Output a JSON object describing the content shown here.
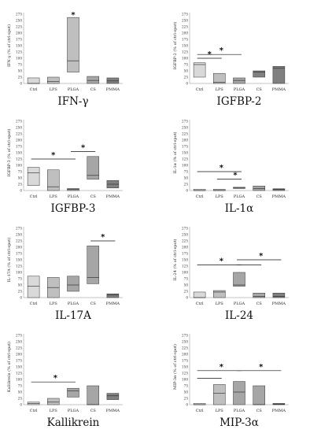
{
  "chart_data": [
    {
      "type": "box",
      "title": "IFN-γ",
      "ylabel": "IFN-γ (% of ctrl-spot)",
      "categories": [
        "Ctrl",
        "LPS",
        "PLGA",
        "CS",
        "PMMA"
      ],
      "yticks": [
        "0",
        "25",
        "50",
        "75",
        "100",
        "125",
        "150",
        "175",
        "200",
        "225",
        "250",
        "275"
      ],
      "ylim": [
        0,
        275
      ],
      "boxes": [
        {
          "low": 0,
          "median": 0,
          "high": 22,
          "fill": "#d9d9d9"
        },
        {
          "low": 0,
          "median": 8,
          "high": 25,
          "fill": "#bfbfbf"
        },
        {
          "low": 45,
          "median": 90,
          "high": 262,
          "fill": "#bfbfbf"
        },
        {
          "low": 0,
          "median": 12,
          "high": 28,
          "fill": "#a6a6a6"
        },
        {
          "low": 0,
          "median": 10,
          "high": 22,
          "fill": "#808080"
        }
      ],
      "significance": [
        {
          "x": 2,
          "y": 275,
          "bracket": false
        }
      ]
    },
    {
      "type": "box",
      "title": "IGFBP-2",
      "ylabel": "IGFBP-2 (% of ctrl-spot)",
      "categories": [
        "Ctrl",
        "LPS",
        "PLGA",
        "CS",
        "PMMA"
      ],
      "yticks": [
        "0",
        "25",
        "50",
        "75",
        "100",
        "125",
        "150",
        "175",
        "200",
        "225",
        "250",
        "275"
      ],
      "ylim": [
        0,
        275
      ],
      "boxes": [
        {
          "low": 25,
          "median": 75,
          "high": 82,
          "fill": "#d9d9d9"
        },
        {
          "low": 0,
          "median": 5,
          "high": 40,
          "fill": "#bfbfbf"
        },
        {
          "low": 0,
          "median": 12,
          "high": 22,
          "fill": "#a6a6a6"
        },
        {
          "low": 25,
          "median": 45,
          "high": 50,
          "fill": "#808080"
        },
        {
          "low": 0,
          "median": 60,
          "high": 68,
          "fill": "#808080"
        }
      ],
      "significance": [
        {
          "x1": 0,
          "x2": 1,
          "y": 100,
          "bracket": true
        },
        {
          "x1": 0,
          "x2": 2,
          "y": 115,
          "bracket": true,
          "star_x": 1.1
        }
      ]
    },
    {
      "type": "box",
      "title": "IGFBP-3",
      "ylabel": "IGFBP-3 (% of ctrl-spot)",
      "categories": [
        "Ctrl",
        "LPS",
        "PLGA",
        "CS",
        "PMMA"
      ],
      "yticks": [
        "0",
        "25",
        "50",
        "75",
        "100",
        "125",
        "150",
        "175",
        "200",
        "225",
        "250",
        "275"
      ],
      "ylim": [
        0,
        275
      ],
      "boxes": [
        {
          "low": 20,
          "median": 70,
          "high": 92,
          "fill": "#d9d9d9"
        },
        {
          "low": 0,
          "median": 15,
          "high": 82,
          "fill": "#bfbfbf"
        },
        {
          "low": 0,
          "median": 5,
          "high": 8,
          "fill": "#a6a6a6"
        },
        {
          "low": 45,
          "median": 60,
          "high": 135,
          "fill": "#a6a6a6"
        },
        {
          "low": 10,
          "median": 25,
          "high": 40,
          "fill": "#808080"
        }
      ],
      "significance": [
        {
          "x1": 0,
          "x2": 2,
          "y": 125,
          "bracket": true
        },
        {
          "x1": 2,
          "x2": 3,
          "y": 155,
          "bracket": true
        }
      ]
    },
    {
      "type": "box",
      "title": "IL-1α",
      "ylabel": "IL-1α (% of ctrl-spot)",
      "categories": [
        "Ctrl",
        "LPS",
        "PLGA",
        "CS",
        "PMMA"
      ],
      "yticks": [
        "0",
        "25",
        "50",
        "75",
        "100",
        "125",
        "150",
        "175",
        "200",
        "225",
        "250",
        "275"
      ],
      "ylim": [
        0,
        275
      ],
      "boxes": [
        {
          "low": 0,
          "median": 0,
          "high": 5,
          "fill": "#d9d9d9"
        },
        {
          "low": 0,
          "median": 0,
          "high": 5,
          "fill": "#bfbfbf"
        },
        {
          "low": 8,
          "median": 10,
          "high": 13,
          "fill": "#a6a6a6"
        },
        {
          "low": 0,
          "median": 8,
          "high": 18,
          "fill": "#a6a6a6"
        },
        {
          "low": 0,
          "median": 5,
          "high": 7,
          "fill": "#808080"
        }
      ],
      "significance": [
        {
          "x1": 0,
          "x2": 2,
          "y": 75,
          "bracket": true,
          "star_x": 1.1
        },
        {
          "x1": 1,
          "x2": 2,
          "y": 45,
          "bracket": true,
          "star_x": 1.8
        }
      ]
    },
    {
      "type": "box",
      "title": "IL-17A",
      "ylabel": "IL-17A (% of ctrl-spot)",
      "categories": [
        "Ctrl",
        "LPS",
        "PLGA",
        "CS",
        "PMMA"
      ],
      "yticks": [
        "0",
        "25",
        "50",
        "75",
        "100",
        "125",
        "150",
        "175",
        "200",
        "225",
        "250",
        "275"
      ],
      "ylim": [
        0,
        275
      ],
      "boxes": [
        {
          "low": 0,
          "median": 45,
          "high": 85,
          "fill": "#d9d9d9"
        },
        {
          "low": 0,
          "median": 40,
          "high": 80,
          "fill": "#bfbfbf"
        },
        {
          "low": 25,
          "median": 50,
          "high": 85,
          "fill": "#a6a6a6"
        },
        {
          "low": 55,
          "median": 80,
          "high": 205,
          "fill": "#a6a6a6"
        },
        {
          "low": 0,
          "median": 10,
          "high": 15,
          "fill": "#808080"
        }
      ],
      "significance": [
        {
          "x1": 3,
          "x2": 4,
          "y": 225,
          "bracket": true
        }
      ]
    },
    {
      "type": "box",
      "title": "IL-24",
      "ylabel": "IL-24 (% of ctrl-spot)",
      "categories": [
        "Ctrl",
        "LPS",
        "PLGA",
        "CS",
        "PMMA"
      ],
      "yticks": [
        "0",
        "25",
        "50",
        "75",
        "100",
        "125",
        "150",
        "175",
        "200",
        "225",
        "250",
        "275"
      ],
      "ylim": [
        0,
        275
      ],
      "boxes": [
        {
          "low": 0,
          "median": 0,
          "high": 22,
          "fill": "#d9d9d9"
        },
        {
          "low": 0,
          "median": 22,
          "high": 28,
          "fill": "#bfbfbf"
        },
        {
          "low": 45,
          "median": 50,
          "high": 100,
          "fill": "#a6a6a6"
        },
        {
          "low": 0,
          "median": 5,
          "high": 18,
          "fill": "#a6a6a6"
        },
        {
          "low": 0,
          "median": 5,
          "high": 18,
          "fill": "#808080"
        }
      ],
      "significance": [
        {
          "x1": 0,
          "x2": 2,
          "y": 130,
          "bracket": true,
          "star_x": 1.1
        },
        {
          "x1": 2,
          "x2": 4,
          "y": 150,
          "bracket": true,
          "star_x": 3.1
        },
        {
          "x1": 2,
          "x2": 3,
          "y": 130,
          "bracket": true,
          "nostar": true
        }
      ]
    },
    {
      "type": "box",
      "title": "Kallikrein",
      "ylabel": "Kallikrein (% of ctrl-spot)",
      "categories": [
        "Ctrl",
        "LPS",
        "PLGA",
        "CS",
        "PMMA"
      ],
      "yticks": [
        "0",
        "25",
        "50",
        "75",
        "100",
        "125",
        "150",
        "175",
        "200",
        "225",
        "250",
        "275"
      ],
      "ylim": [
        0,
        275
      ],
      "boxes": [
        {
          "low": 0,
          "median": 5,
          "high": 10,
          "fill": "#d9d9d9"
        },
        {
          "low": 0,
          "median": 10,
          "high": 25,
          "fill": "#bfbfbf"
        },
        {
          "low": 30,
          "median": 55,
          "high": 65,
          "fill": "#a6a6a6"
        },
        {
          "low": 0,
          "median": 0,
          "high": 75,
          "fill": "#a6a6a6"
        },
        {
          "low": 20,
          "median": 35,
          "high": 45,
          "fill": "#808080"
        }
      ],
      "significance": [
        {
          "x1": 0,
          "x2": 2,
          "y": 90,
          "bracket": true,
          "star_x": 1.1
        }
      ]
    },
    {
      "type": "box",
      "title": "MIP-3α",
      "ylabel": "MIP-3α (% of ctrl-spot)",
      "categories": [
        "Ctrl",
        "LPS",
        "PLGA",
        "CS",
        "PMMA"
      ],
      "yticks": [
        "0",
        "25",
        "50",
        "75",
        "100",
        "125",
        "150",
        "175",
        "200",
        "225",
        "250",
        "275"
      ],
      "ylim": [
        0,
        275
      ],
      "boxes": [
        {
          "low": 0,
          "median": 0,
          "high": 5,
          "fill": "#d9d9d9"
        },
        {
          "low": 0,
          "median": 45,
          "high": 80,
          "fill": "#bfbfbf"
        },
        {
          "low": 0,
          "median": 50,
          "high": 92,
          "fill": "#a6a6a6"
        },
        {
          "low": 0,
          "median": 0,
          "high": 75,
          "fill": "#a6a6a6"
        },
        {
          "low": 0,
          "median": 2,
          "high": 5,
          "fill": "#808080"
        }
      ],
      "significance": [
        {
          "x1": 0,
          "x2": 1,
          "y": 105,
          "bracket": true,
          "nostar": true
        },
        {
          "x1": 0,
          "x2": 2,
          "y": 135,
          "bracket": true,
          "star_x": 1.1
        },
        {
          "x1": 2,
          "x2": 4,
          "y": 135,
          "bracket": true,
          "star_x": 3.1
        }
      ]
    }
  ]
}
